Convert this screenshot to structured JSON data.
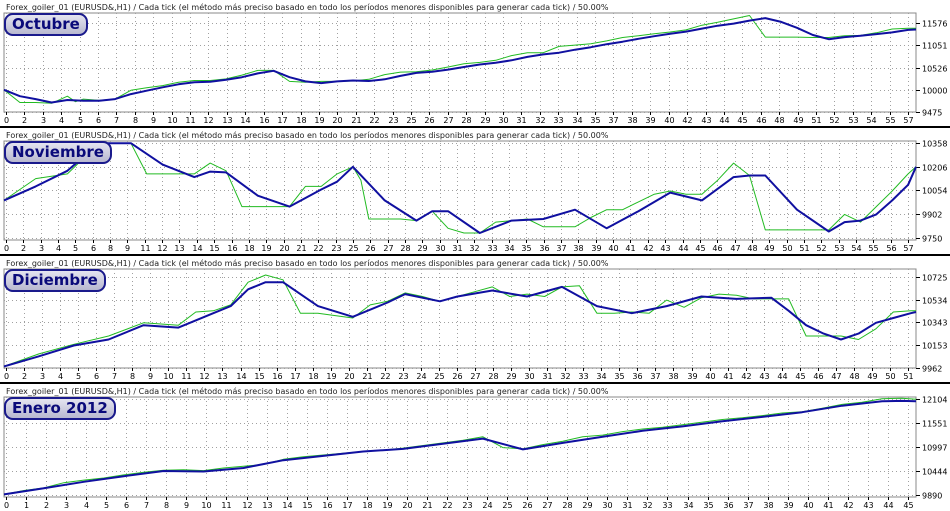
{
  "header_text": "Forex_goiler_01 (EURUSD&,H1) / Cada tick (el método más preciso basado en todo los períodos menores disponibles para generar cada tick) / 50.00%",
  "colors": {
    "balance": "#1010a0",
    "equity": "#22bb22",
    "grid": "#a0a0a0"
  },
  "chart_data": [
    {
      "type": "line",
      "title": "Octubre",
      "header": "Forex_goiler_01 (EURUSD&,H1) / Cada tick (el método más preciso basado en todo los períodos menores disponibles para generar cada tick) / 50.00%",
      "x_ticks": [
        "0",
        "2",
        "3",
        "4",
        "5",
        "6",
        "7",
        "8",
        "9",
        "10",
        "11",
        "12",
        "13",
        "14",
        "16",
        "17",
        "18",
        "19",
        "20",
        "21",
        "22",
        "23",
        "25",
        "26",
        "27",
        "28",
        "29",
        "30",
        "31",
        "32",
        "33",
        "34",
        "35",
        "37",
        "38",
        "39",
        "40",
        "42",
        "43",
        "44",
        "45",
        "46",
        "48",
        "49",
        "51",
        "52",
        "53",
        "54",
        "55",
        "57"
      ],
      "y_ticks": [
        "11576",
        "11051",
        "10526",
        "10000",
        "9475"
      ],
      "ylim": [
        9475,
        11820
      ],
      "x_max": 57.5,
      "series": [
        {
          "role": "balance",
          "x": [
            0,
            1,
            2,
            3,
            4,
            5,
            6,
            7,
            8,
            9,
            10,
            11,
            12,
            13,
            14,
            15,
            16,
            17,
            18,
            19,
            20,
            21,
            22,
            23,
            24,
            25,
            26,
            27,
            28,
            29,
            30,
            31,
            32,
            33,
            34,
            35,
            36,
            37,
            38,
            39,
            40,
            41,
            42,
            43,
            44,
            45,
            46,
            47,
            48,
            49,
            50,
            51,
            52,
            53,
            54,
            55,
            56,
            57,
            57.5
          ],
          "y": [
            10000,
            9850,
            9780,
            9700,
            9760,
            9740,
            9740,
            9780,
            9900,
            9980,
            10060,
            10130,
            10180,
            10190,
            10240,
            10300,
            10390,
            10450,
            10300,
            10200,
            10160,
            10200,
            10220,
            10210,
            10250,
            10330,
            10400,
            10430,
            10480,
            10540,
            10600,
            10640,
            10700,
            10780,
            10840,
            10880,
            10950,
            11010,
            11080,
            11140,
            11210,
            11270,
            11330,
            11380,
            11450,
            11520,
            11570,
            11640,
            11700,
            11610,
            11470,
            11300,
            11200,
            11250,
            11280,
            11320,
            11360,
            11420,
            11430
          ]
        },
        {
          "role": "equity",
          "x": [
            0,
            1,
            2,
            3,
            4,
            4.5,
            5,
            6,
            7,
            8,
            9,
            10,
            11,
            12,
            13,
            14,
            15,
            16,
            17,
            18,
            19,
            20,
            21,
            22,
            23,
            24,
            25,
            26,
            27,
            28,
            29,
            30,
            31,
            32,
            33,
            34,
            35,
            36,
            37,
            38,
            39,
            40,
            41,
            42,
            43,
            44,
            45,
            46,
            47,
            48,
            49,
            49.5,
            50,
            51,
            52,
            53,
            54,
            55,
            56,
            57,
            57.5
          ],
          "y": [
            10000,
            9700,
            9700,
            9680,
            9850,
            9720,
            9780,
            9750,
            9780,
            9990,
            10050,
            10100,
            10180,
            10220,
            10220,
            10260,
            10350,
            10460,
            10460,
            10200,
            10180,
            10200,
            10200,
            10210,
            10250,
            10360,
            10420,
            10430,
            10470,
            10540,
            10620,
            10650,
            10700,
            10810,
            10880,
            10880,
            11030,
            11060,
            11090,
            11160,
            11240,
            11280,
            11330,
            11370,
            11420,
            11530,
            11600,
            11680,
            11760,
            11250,
            11250,
            11250,
            11250,
            11240,
            11240,
            11280,
            11290,
            11350,
            11440,
            11460,
            11460
          ]
        }
      ]
    },
    {
      "type": "line",
      "title": "Noviembre",
      "header": "Forex_goiler_01 (EURUSD&,H1) / Cada tick (el método más preciso basado en todo los períodos menores disponibles para generar cada tick) / 50.00%",
      "x_ticks": [
        "0",
        "2",
        "3",
        "4",
        "5",
        "6",
        "8",
        "9",
        "11",
        "12",
        "13",
        "14",
        "15",
        "16",
        "18",
        "19",
        "20",
        "21",
        "22",
        "23",
        "25",
        "26",
        "27",
        "28",
        "29",
        "30",
        "31",
        "32",
        "33",
        "34",
        "35",
        "36",
        "37",
        "38",
        "39",
        "40",
        "41",
        "42",
        "43",
        "44",
        "45",
        "46",
        "47",
        "48",
        "49",
        "50",
        "51",
        "52",
        "53",
        "54",
        "55",
        "56",
        "57"
      ],
      "y_ticks": [
        "10358",
        "10206",
        "10054",
        "9902",
        "9750"
      ],
      "ylim": [
        9735,
        10372
      ],
      "x_max": 57.5,
      "series": [
        {
          "role": "balance",
          "x": [
            0,
            2,
            4,
            6,
            8,
            10,
            12,
            13,
            14,
            16,
            18,
            20,
            21,
            22,
            24,
            26,
            27,
            28,
            30,
            32,
            34,
            36,
            38,
            40,
            42,
            44,
            46,
            47,
            48,
            50,
            52,
            53,
            54,
            55,
            56,
            57,
            57.5
          ],
          "y": [
            9990,
            10080,
            10180,
            10358,
            10358,
            10220,
            10140,
            10175,
            10170,
            10020,
            9950,
            10060,
            10110,
            10206,
            9990,
            9860,
            9920,
            9920,
            9780,
            9860,
            9870,
            9930,
            9810,
            9920,
            10040,
            9990,
            10140,
            10150,
            10150,
            9930,
            9790,
            9850,
            9860,
            9900,
            9990,
            10090,
            10206
          ]
        },
        {
          "role": "equity",
          "x": [
            0,
            2,
            4,
            6,
            8,
            9,
            10,
            12,
            13,
            14,
            15,
            16,
            18,
            19,
            20,
            21,
            22,
            22.5,
            23,
            25,
            26,
            27,
            28,
            29,
            30,
            31,
            32,
            33,
            34,
            35,
            36,
            37,
            38,
            39,
            40,
            41,
            42,
            43,
            44,
            45,
            46,
            47,
            48,
            49,
            50,
            51,
            52,
            53,
            54,
            55,
            56,
            57,
            57.5
          ],
          "y": [
            9990,
            10130,
            10160,
            10358,
            10358,
            10160,
            10160,
            10160,
            10230,
            10180,
            9950,
            9950,
            9950,
            10080,
            10080,
            10160,
            10206,
            10120,
            9870,
            9870,
            9860,
            9920,
            9810,
            9780,
            9780,
            9850,
            9860,
            9870,
            9820,
            9820,
            9820,
            9880,
            9930,
            9930,
            9980,
            10030,
            10050,
            10030,
            10030,
            10120,
            10230,
            10150,
            9800,
            9800,
            9800,
            9800,
            9800,
            9900,
            9850,
            9950,
            10050,
            10160,
            10206
          ]
        }
      ]
    },
    {
      "type": "line",
      "title": "Diciembre",
      "header": "Forex_goiler_01 (EURUSD&,H1) / Cada tick (el método más preciso basado en todo los períodos menores disponibles para generar cada tick) / 50.00%",
      "x_ticks": [
        "0",
        "2",
        "3",
        "4",
        "5",
        "6",
        "7",
        "8",
        "9",
        "10",
        "11",
        "12",
        "13",
        "14",
        "15",
        "16",
        "17",
        "18",
        "19",
        "20",
        "21",
        "22",
        "23",
        "24",
        "25",
        "26",
        "27",
        "28",
        "29",
        "30",
        "31",
        "32",
        "33",
        "34",
        "35",
        "36",
        "37",
        "38",
        "39",
        "40",
        "41",
        "42",
        "43",
        "44",
        "45",
        "46",
        "47",
        "48",
        "49",
        "50",
        "51"
      ],
      "y_ticks": [
        "10725",
        "10534",
        "10343",
        "10153",
        "9962"
      ],
      "ylim": [
        9962,
        10790
      ],
      "x_max": 52.3,
      "series": [
        {
          "role": "balance",
          "x": [
            0,
            2,
            4,
            6,
            8,
            10,
            12,
            13,
            14,
            15,
            16,
            18,
            20,
            22,
            23,
            25,
            26,
            28,
            30,
            32,
            34,
            36,
            38,
            40,
            42,
            44,
            45,
            46,
            47,
            48,
            49,
            50,
            51,
            52,
            52.3
          ],
          "y": [
            9975,
            10060,
            10150,
            10200,
            10320,
            10300,
            10420,
            10480,
            10620,
            10680,
            10680,
            10480,
            10390,
            10510,
            10580,
            10520,
            10560,
            10610,
            10560,
            10640,
            10480,
            10420,
            10480,
            10560,
            10540,
            10550,
            10440,
            10320,
            10250,
            10200,
            10250,
            10340,
            10380,
            10420,
            10430
          ]
        },
        {
          "role": "equity",
          "x": [
            0,
            2,
            4,
            6,
            8,
            10,
            11,
            12,
            13,
            14,
            15,
            16,
            17,
            18,
            19,
            20,
            21,
            22,
            23,
            24,
            25,
            26,
            27,
            28,
            29,
            30,
            31,
            32,
            33,
            34,
            35,
            36,
            37,
            38,
            39,
            40,
            41,
            42,
            43,
            44,
            45,
            46,
            47,
            48,
            49,
            50,
            51,
            52,
            52.3
          ],
          "y": [
            9975,
            10080,
            10160,
            10230,
            10340,
            10320,
            10430,
            10440,
            10490,
            10680,
            10740,
            10700,
            10420,
            10420,
            10400,
            10380,
            10490,
            10520,
            10590,
            10560,
            10520,
            10560,
            10600,
            10640,
            10560,
            10580,
            10560,
            10640,
            10650,
            10420,
            10420,
            10430,
            10420,
            10530,
            10470,
            10550,
            10580,
            10570,
            10540,
            10540,
            10540,
            10230,
            10230,
            10230,
            10200,
            10290,
            10430,
            10440,
            10440
          ]
        }
      ]
    },
    {
      "type": "line",
      "title": "Enero 2012",
      "header": "Forex_goiler_01 (EURUSD&,H1) / Cada tick (el método más preciso basado en todo los períodos menores disponibles para generar cada tick) / 50.00%",
      "x_ticks": [
        "0",
        "1",
        "2",
        "3",
        "4",
        "5",
        "6",
        "7",
        "8",
        "9",
        "10",
        "11",
        "12",
        "13",
        "14",
        "15",
        "16",
        "17",
        "18",
        "19",
        "20",
        "21",
        "22",
        "23",
        "24",
        "25",
        "26",
        "27",
        "28",
        "29",
        "30",
        "31",
        "32",
        "33",
        "34",
        "35",
        "36",
        "37",
        "38",
        "39",
        "40",
        "41",
        "42",
        "43",
        "44",
        "45"
      ],
      "y_ticks": [
        "12104",
        "11551",
        "10997",
        "10444",
        "9890"
      ],
      "ylim": [
        9850,
        12160
      ],
      "x_max": 45.7,
      "series": [
        {
          "role": "balance",
          "x": [
            0,
            2,
            4,
            6,
            8,
            10,
            12,
            14,
            16,
            18,
            20,
            22,
            24,
            26,
            28,
            30,
            32,
            34,
            36,
            38,
            40,
            42,
            44,
            45,
            45.7
          ],
          "y": [
            9910,
            10050,
            10200,
            10330,
            10450,
            10440,
            10520,
            10700,
            10800,
            10900,
            10960,
            11080,
            11200,
            10950,
            11100,
            11240,
            11380,
            11480,
            11600,
            11700,
            11810,
            11960,
            12060,
            12070,
            12060
          ]
        },
        {
          "role": "equity",
          "x": [
            0,
            1,
            2,
            3,
            4,
            5,
            6,
            7,
            8,
            9,
            10,
            11,
            12,
            13,
            14,
            15,
            16,
            17,
            18,
            19,
            20,
            21,
            22,
            23,
            24,
            25,
            26,
            27,
            28,
            29,
            30,
            31,
            32,
            33,
            34,
            35,
            36,
            37,
            38,
            39,
            40,
            41,
            42,
            43,
            44,
            45,
            45.7
          ],
          "y": [
            9910,
            10000,
            10060,
            10180,
            10240,
            10290,
            10360,
            10420,
            10470,
            10480,
            10460,
            10520,
            10560,
            10600,
            10720,
            10780,
            10820,
            10860,
            10900,
            10930,
            10980,
            11040,
            11100,
            11160,
            11240,
            10990,
            10960,
            11060,
            11140,
            11240,
            11280,
            11360,
            11420,
            11460,
            11520,
            11580,
            11640,
            11680,
            11730,
            11790,
            11820,
            11900,
            11990,
            12040,
            12120,
            12130,
            12110
          ]
        }
      ]
    }
  ]
}
